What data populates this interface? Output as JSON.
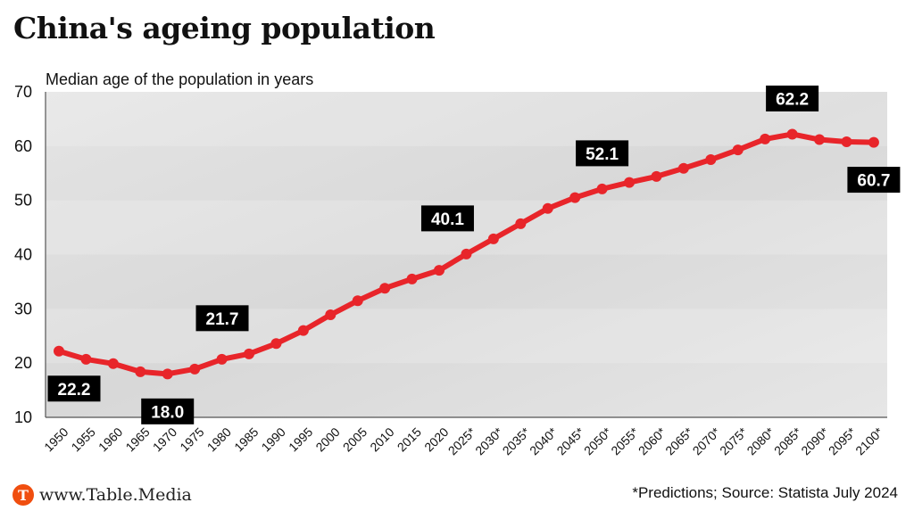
{
  "header": {
    "title": "China's ageing population",
    "subtitle": "Median age of the population in years"
  },
  "footer": {
    "logo_letter": "T",
    "site": "www.Table.Media",
    "source": "*Predictions; Source: Statista July 2024"
  },
  "colors": {
    "line": "#e8252a",
    "label_bg": "#000000",
    "logo": "#f04e0f"
  },
  "chart_data": {
    "type": "line",
    "title": "China's ageing population",
    "ylabel": "Median age of the population in years",
    "xlabel": "",
    "ylim": [
      10,
      70
    ],
    "yticks": [
      10,
      20,
      30,
      40,
      50,
      60,
      70
    ],
    "grid": false,
    "legend": "none",
    "categories": [
      "1950",
      "1955",
      "1960",
      "1965",
      "1970",
      "1975",
      "1980",
      "1985",
      "1990",
      "1995",
      "2000",
      "2005",
      "2010",
      "2015",
      "2020",
      "2025*",
      "2030*",
      "2035*",
      "2040*",
      "2045*",
      "2050*",
      "2055*",
      "2060*",
      "2065*",
      "2070*",
      "2075*",
      "2080*",
      "2085*",
      "2090*",
      "2095*",
      "2100*"
    ],
    "series": [
      {
        "name": "Median age",
        "values": [
          22.2,
          20.7,
          19.9,
          18.4,
          18.0,
          18.9,
          20.7,
          21.7,
          23.6,
          26.0,
          28.9,
          31.5,
          33.8,
          35.5,
          37.1,
          40.1,
          42.9,
          45.7,
          48.5,
          50.5,
          52.1,
          53.3,
          54.4,
          55.9,
          57.5,
          59.3,
          61.3,
          62.2,
          61.2,
          60.8,
          60.7
        ]
      }
    ],
    "annotations": [
      {
        "category": "1950",
        "text": "22.2",
        "position": "below"
      },
      {
        "category": "1970",
        "text": "18.0",
        "position": "below"
      },
      {
        "category": "1985",
        "text": "21.7",
        "position": "above"
      },
      {
        "category": "2025*",
        "text": "40.1",
        "position": "above"
      },
      {
        "category": "2050*",
        "text": "52.1",
        "position": "above"
      },
      {
        "category": "2085*",
        "text": "62.2",
        "position": "above"
      },
      {
        "category": "2100*",
        "text": "60.7",
        "position": "below"
      }
    ]
  }
}
